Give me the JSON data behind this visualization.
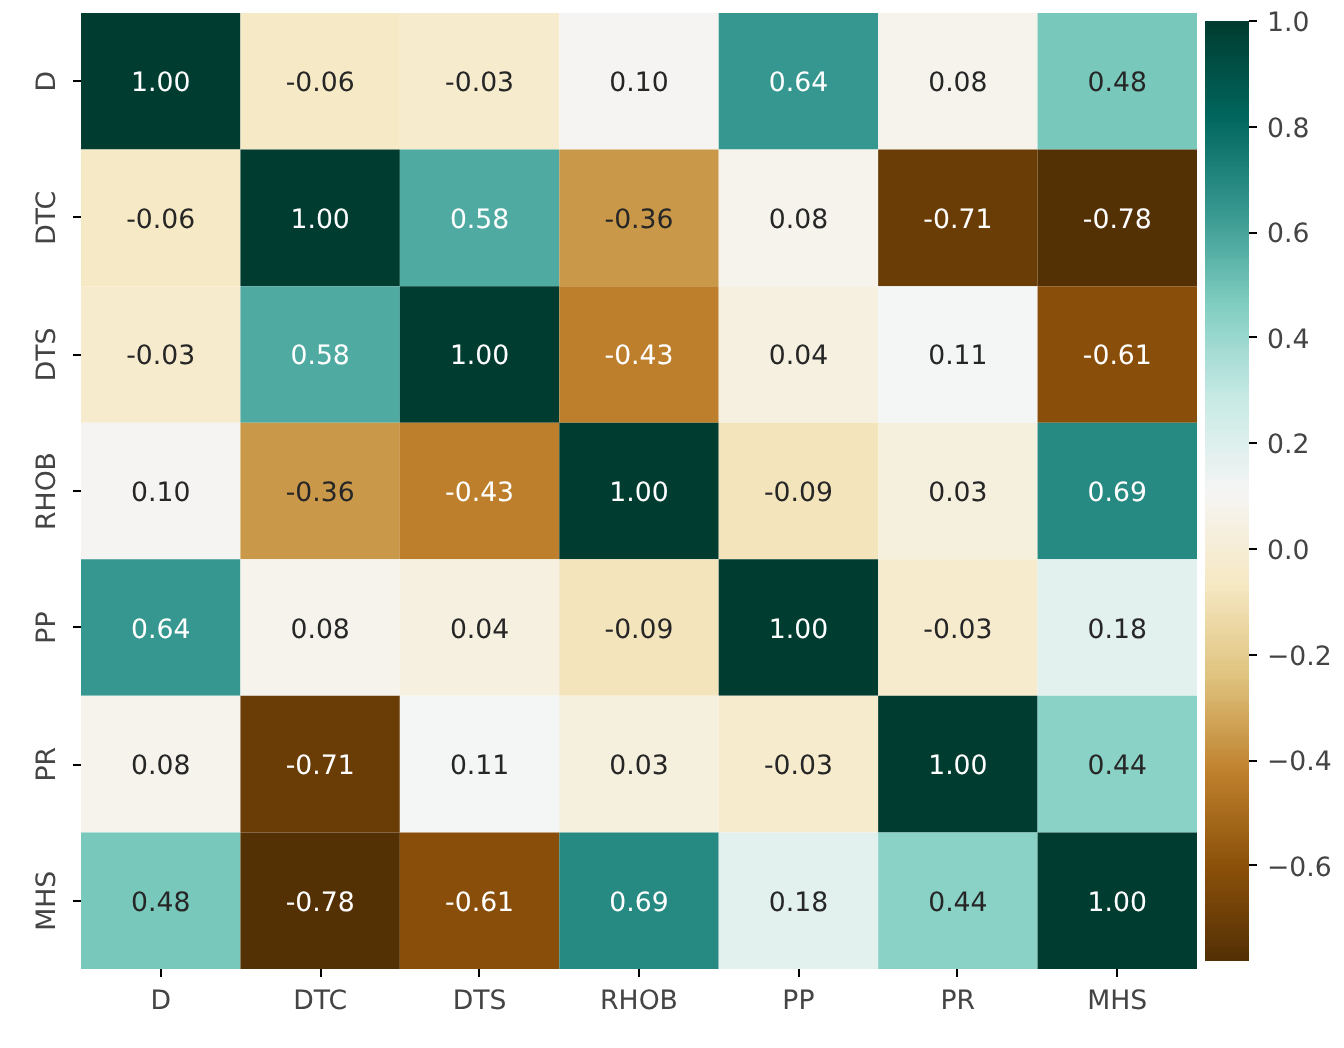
{
  "chart_data": {
    "type": "heatmap",
    "categories": [
      "D",
      "DTC",
      "DTS",
      "RHOB",
      "PP",
      "PR",
      "MHS"
    ],
    "y_categories": [
      "D",
      "DTC",
      "DTS",
      "RHOB",
      "PP",
      "PR",
      "MHS"
    ],
    "cells": [
      [
        1.0,
        -0.06,
        -0.03,
        0.1,
        0.64,
        0.08,
        0.48
      ],
      [
        -0.06,
        1.0,
        0.58,
        -0.36,
        0.08,
        -0.71,
        -0.78
      ],
      [
        -0.03,
        0.58,
        1.0,
        -0.43,
        0.04,
        0.11,
        -0.61
      ],
      [
        0.1,
        -0.36,
        -0.43,
        1.0,
        -0.09,
        0.03,
        0.69
      ],
      [
        0.64,
        0.08,
        0.04,
        -0.09,
        1.0,
        -0.03,
        0.18
      ],
      [
        0.08,
        -0.71,
        0.11,
        0.03,
        -0.03,
        1.0,
        0.44
      ],
      [
        0.48,
        -0.78,
        -0.61,
        0.69,
        0.18,
        0.44,
        1.0
      ]
    ],
    "cell_labels": [
      [
        "1.00",
        "-0.06",
        "-0.03",
        "0.10",
        "0.64",
        "0.08",
        "0.48"
      ],
      [
        "-0.06",
        "1.00",
        "0.58",
        "-0.36",
        "0.08",
        "-0.71",
        "-0.78"
      ],
      [
        "-0.03",
        "0.58",
        "1.00",
        "-0.43",
        "0.04",
        "0.11",
        "-0.61"
      ],
      [
        "0.10",
        "-0.36",
        "-0.43",
        "1.00",
        "-0.09",
        "0.03",
        "0.69"
      ],
      [
        "0.64",
        "0.08",
        "0.04",
        "-0.09",
        "1.00",
        "-0.03",
        "0.18"
      ],
      [
        "0.08",
        "-0.71",
        "0.11",
        "0.03",
        "-0.03",
        "1.00",
        "0.44"
      ],
      [
        "0.48",
        "-0.78",
        "-0.61",
        "0.69",
        "0.18",
        "0.44",
        "1.00"
      ]
    ],
    "clim": [
      -0.78,
      1.0
    ],
    "cticks": [
      {
        "value": -0.6,
        "label": "−0.6"
      },
      {
        "value": -0.4,
        "label": "−0.4"
      },
      {
        "value": -0.2,
        "label": "−0.2"
      },
      {
        "value": 0.0,
        "label": "0.0"
      },
      {
        "value": 0.2,
        "label": "0.2"
      },
      {
        "value": 0.4,
        "label": "0.4"
      },
      {
        "value": 0.6,
        "label": "0.6"
      },
      {
        "value": 0.8,
        "label": "0.8"
      },
      {
        "value": 1.0,
        "label": "1.0"
      }
    ]
  }
}
